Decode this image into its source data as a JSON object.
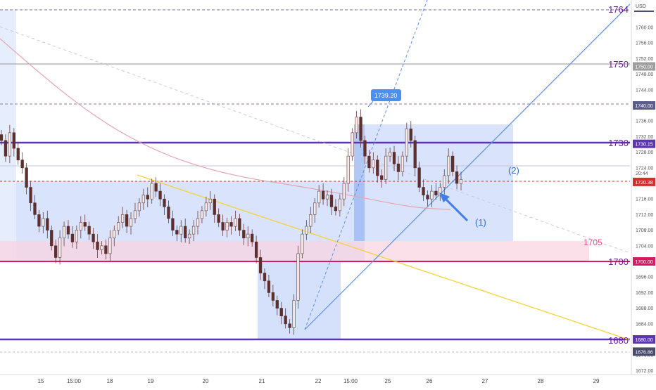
{
  "currency": "USD",
  "chart_data": {
    "type": "candlestick",
    "instrument": "XAUUSD",
    "timeframe": "intraday",
    "ylim": [
      1671,
      1766
    ],
    "y_ticks": [
      1672,
      1676,
      1680,
      1684,
      1688,
      1692,
      1696,
      1700,
      1704,
      1708,
      1712,
      1716,
      1720,
      1724,
      1728,
      1732,
      1736,
      1740,
      1744,
      1748,
      1752,
      1756,
      1760
    ],
    "x_ticks": [
      "15",
      "15:00",
      "18",
      "19",
      "20",
      "21",
      "22",
      "15:00",
      "25",
      "26",
      "27",
      "28",
      "29"
    ],
    "price_badges": [
      {
        "value": "1750.00",
        "color": "#9e9e9e"
      },
      {
        "value": "1740.00",
        "color": "#5b5b8c"
      },
      {
        "value": "1730.15",
        "color": "#5e35b1"
      },
      {
        "value": "1720.38",
        "color": "#d32f2f"
      },
      {
        "value": "1700.00",
        "color": "#d81b60"
      },
      {
        "value": "1680.00",
        "color": "#5e35b1"
      },
      {
        "value": "1676.86",
        "color": "#4a4a6a"
      }
    ],
    "current_time": "20:44",
    "level_labels": [
      {
        "text": "1764",
        "price": 1764
      },
      {
        "text": "1750",
        "price": 1750
      },
      {
        "text": "1730",
        "price": 1730.15
      },
      {
        "text": "1700",
        "price": 1700
      },
      {
        "text": "1680",
        "price": 1680
      },
      {
        "text": "1705",
        "price": 1705
      }
    ],
    "high_callout": "1739.20",
    "annotations": [
      "(1)",
      "(2)"
    ],
    "candles_close": [
      1731,
      1727,
      1733,
      1729,
      1726,
      1724,
      1719,
      1715,
      1712,
      1709,
      1711,
      1708,
      1704,
      1701,
      1706,
      1709,
      1707,
      1705,
      1708,
      1710,
      1709,
      1707,
      1705,
      1703,
      1704,
      1702,
      1706,
      1708,
      1710,
      1712,
      1709,
      1711,
      1713,
      1715,
      1717,
      1716,
      1720,
      1718,
      1716,
      1714,
      1711,
      1708,
      1707,
      1709,
      1706,
      1707,
      1709,
      1711,
      1713,
      1715,
      1716,
      1712,
      1710,
      1708,
      1710,
      1709,
      1711,
      1708,
      1706,
      1707,
      1705,
      1701,
      1697,
      1695,
      1692,
      1690,
      1688,
      1686,
      1684,
      1683,
      1690,
      1702,
      1707,
      1709,
      1712,
      1715,
      1718,
      1716,
      1717,
      1714,
      1713,
      1716,
      1720,
      1727,
      1733,
      1737,
      1731,
      1727,
      1724,
      1726,
      1722,
      1721,
      1727,
      1728,
      1725,
      1723,
      1727,
      1734,
      1731,
      1724,
      1719,
      1717,
      1716,
      1718,
      1717,
      1719,
      1722,
      1727,
      1723,
      1720,
      1721
    ]
  }
}
